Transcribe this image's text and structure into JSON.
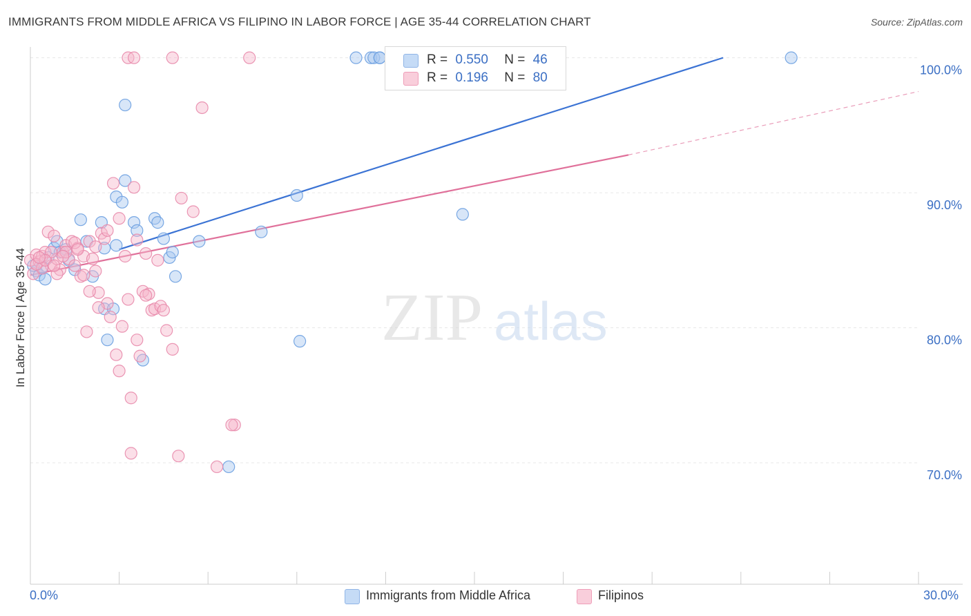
{
  "title": "IMMIGRANTS FROM MIDDLE AFRICA VS FILIPINO IN LABOR FORCE | AGE 35-44 CORRELATION CHART",
  "source": "Source: ZipAtlas.com",
  "watermark": {
    "zip": "ZIP",
    "atlas": "atlas"
  },
  "legend": {
    "r_label": "R =",
    "n_label": "N =",
    "rows": [
      {
        "r": "0.550",
        "n": "46",
        "color": "#a9c8f0"
      },
      {
        "r": "0.196",
        "n": "80",
        "color": "#f6b8cb"
      }
    ]
  },
  "bottom_legend": [
    {
      "label": "Immigrants from Middle Africa",
      "color": "#a9c8f0"
    },
    {
      "label": "Filipinos",
      "color": "#f6b8cb"
    }
  ],
  "colors": {
    "blue": "#3b73d4",
    "pink": "#e0709a",
    "axis_text": "#3b6fc4"
  },
  "chart_data": {
    "type": "scatter",
    "title": "IMMIGRANTS FROM MIDDLE AFRICA VS FILIPINO IN LABOR FORCE | AGE 35-44 CORRELATION CHART",
    "xlabel": "",
    "ylabel": "In Labor Force | Age 35-44",
    "xlim": [
      0,
      30
    ],
    "ylim": [
      61,
      100.8
    ],
    "x_tick_labels": [
      "0.0%",
      "30.0%"
    ],
    "y_ticks": [
      70,
      80,
      90,
      100
    ],
    "y_tick_labels": [
      "70.0%",
      "80.0%",
      "90.0%",
      "100.0%"
    ],
    "grid": true,
    "legend_position": "top-center",
    "series": [
      {
        "name": "Immigrants from Middle Africa",
        "color": "#a9c8f0",
        "stroke": "#6a9ee0",
        "trend": {
          "x": [
            3.0,
            23.4
          ],
          "y": [
            85.8,
            100.0
          ],
          "dashed_to": null
        },
        "points": [
          [
            0.2,
            84.2
          ],
          [
            0.3,
            83.9
          ],
          [
            0.4,
            84.5
          ],
          [
            0.5,
            83.6
          ],
          [
            0.6,
            85.2
          ],
          [
            0.8,
            85.9
          ],
          [
            0.9,
            86.4
          ],
          [
            1.0,
            85.6
          ],
          [
            1.2,
            85.8
          ],
          [
            1.3,
            85.0
          ],
          [
            1.5,
            84.3
          ],
          [
            1.7,
            88.0
          ],
          [
            1.9,
            86.4
          ],
          [
            2.1,
            83.8
          ],
          [
            2.4,
            87.8
          ],
          [
            2.5,
            81.4
          ],
          [
            2.5,
            85.9
          ],
          [
            2.6,
            79.1
          ],
          [
            2.8,
            81.4
          ],
          [
            2.9,
            86.1
          ],
          [
            2.9,
            89.7
          ],
          [
            3.1,
            89.3
          ],
          [
            3.2,
            96.5
          ],
          [
            3.2,
            90.9
          ],
          [
            3.5,
            87.8
          ],
          [
            3.6,
            87.2
          ],
          [
            3.8,
            77.6
          ],
          [
            4.2,
            88.1
          ],
          [
            4.3,
            87.8
          ],
          [
            4.5,
            86.6
          ],
          [
            4.7,
            85.2
          ],
          [
            4.8,
            85.6
          ],
          [
            4.9,
            83.8
          ],
          [
            5.7,
            86.4
          ],
          [
            6.7,
            69.7
          ],
          [
            7.8,
            87.1
          ],
          [
            9.0,
            89.8
          ],
          [
            9.1,
            79.0
          ],
          [
            11.0,
            100.0
          ],
          [
            11.5,
            100.0
          ],
          [
            11.6,
            100.0
          ],
          [
            11.8,
            100.0
          ],
          [
            11.8,
            100.0
          ],
          [
            14.6,
            88.4
          ],
          [
            25.7,
            100.0
          ],
          [
            0.1,
            84.6
          ]
        ]
      },
      {
        "name": "Filipinos",
        "color": "#f6b8cb",
        "stroke": "#e88aab",
        "trend": {
          "x": [
            0.0,
            20.2
          ],
          "y": [
            83.9,
            92.8
          ],
          "dashed_to": [
            30.0,
            97.5
          ]
        },
        "points": [
          [
            0.0,
            85.0
          ],
          [
            0.1,
            84.0
          ],
          [
            0.2,
            85.4
          ],
          [
            0.3,
            84.9
          ],
          [
            0.4,
            85.3
          ],
          [
            0.5,
            85.6
          ],
          [
            0.6,
            87.1
          ],
          [
            0.7,
            84.6
          ],
          [
            0.8,
            86.8
          ],
          [
            0.9,
            85.1
          ],
          [
            1.0,
            84.3
          ],
          [
            1.1,
            85.6
          ],
          [
            1.2,
            86.1
          ],
          [
            1.3,
            85.1
          ],
          [
            1.4,
            86.4
          ],
          [
            1.5,
            84.6
          ],
          [
            1.6,
            85.9
          ],
          [
            1.7,
            83.8
          ],
          [
            1.8,
            85.3
          ],
          [
            1.9,
            79.7
          ],
          [
            2.0,
            86.4
          ],
          [
            2.1,
            85.1
          ],
          [
            2.2,
            84.2
          ],
          [
            2.3,
            82.6
          ],
          [
            2.4,
            87.0
          ],
          [
            2.5,
            86.6
          ],
          [
            2.6,
            81.8
          ],
          [
            2.7,
            80.8
          ],
          [
            2.8,
            90.7
          ],
          [
            2.9,
            78.0
          ],
          [
            3.0,
            76.8
          ],
          [
            3.1,
            80.1
          ],
          [
            3.2,
            85.3
          ],
          [
            3.3,
            82.1
          ],
          [
            3.4,
            74.8
          ],
          [
            3.5,
            90.4
          ],
          [
            3.6,
            86.5
          ],
          [
            3.7,
            77.9
          ],
          [
            3.8,
            82.7
          ],
          [
            3.9,
            85.5
          ],
          [
            4.0,
            82.5
          ],
          [
            4.1,
            81.3
          ],
          [
            4.2,
            81.4
          ],
          [
            4.3,
            85.0
          ],
          [
            4.4,
            81.6
          ],
          [
            4.6,
            79.8
          ],
          [
            4.8,
            78.4
          ],
          [
            5.1,
            89.6
          ],
          [
            5.5,
            88.6
          ],
          [
            5.8,
            96.3
          ],
          [
            6.3,
            69.7
          ],
          [
            6.9,
            72.8
          ],
          [
            7.4,
            100.0
          ],
          [
            3.3,
            100.0
          ],
          [
            3.5,
            100.0
          ],
          [
            4.8,
            100.0
          ],
          [
            3.4,
            70.7
          ],
          [
            5.0,
            70.5
          ],
          [
            1.2,
            85.6
          ],
          [
            0.9,
            84.0
          ],
          [
            2.0,
            82.7
          ],
          [
            2.6,
            87.2
          ],
          [
            3.0,
            88.1
          ],
          [
            1.5,
            86.3
          ],
          [
            0.7,
            85.6
          ],
          [
            0.4,
            84.4
          ],
          [
            1.8,
            83.9
          ],
          [
            2.3,
            81.5
          ],
          [
            3.9,
            82.4
          ],
          [
            0.2,
            84.7
          ],
          [
            1.1,
            85.3
          ],
          [
            2.2,
            86.0
          ],
          [
            0.5,
            85.0
          ],
          [
            0.8,
            84.6
          ],
          [
            4.5,
            81.3
          ],
          [
            6.8,
            72.8
          ],
          [
            16.5,
            100.0
          ],
          [
            1.6,
            85.8
          ],
          [
            3.6,
            79.1
          ],
          [
            0.3,
            85.2
          ]
        ]
      }
    ]
  }
}
